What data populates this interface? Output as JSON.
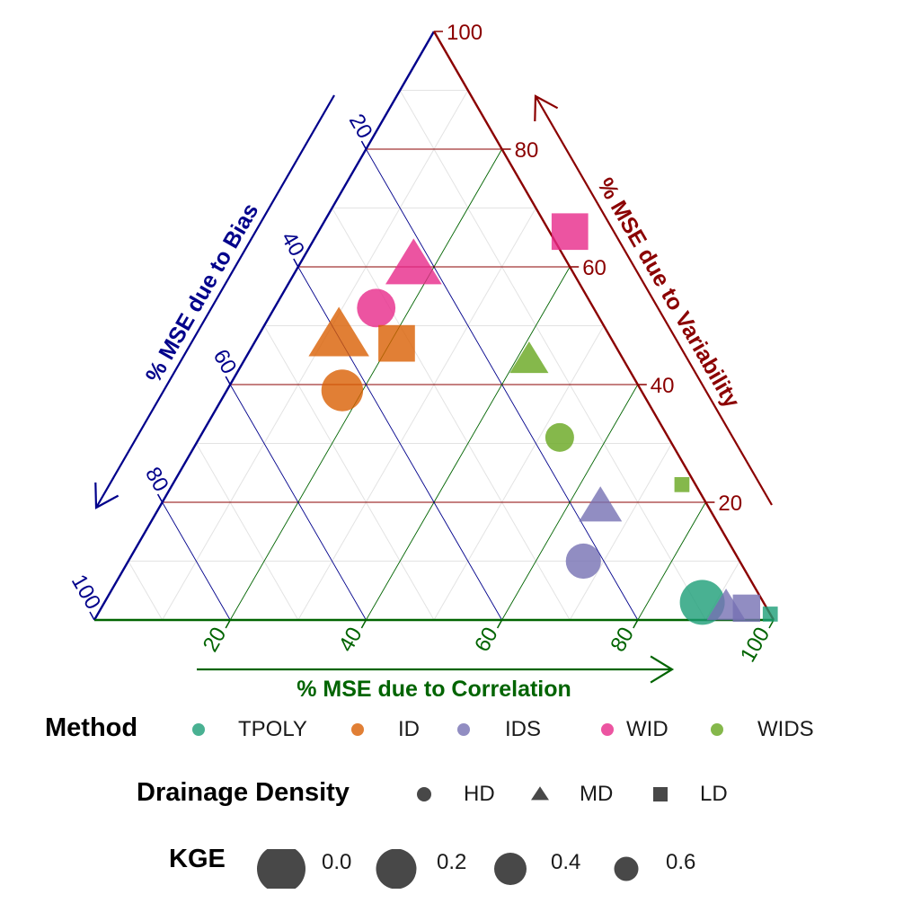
{
  "chart_data": {
    "type": "ternary-scatter",
    "axes": {
      "bias": {
        "label": "% MSE due to Bias",
        "color": "#00008B",
        "ticks": [
          "20",
          "40",
          "60",
          "80",
          "100"
        ]
      },
      "variability": {
        "label": "% MSE due to Variability",
        "color": "#8B0000",
        "ticks": [
          "20",
          "40",
          "60",
          "80",
          "100"
        ]
      },
      "correlation": {
        "label": "% MSE due to Correlation",
        "color": "#006400",
        "ticks": [
          "20",
          "40",
          "60",
          "80",
          "100"
        ]
      }
    },
    "grid": true,
    "methods": [
      {
        "name": "TPOLY",
        "color": "#1B9E77"
      },
      {
        "name": "ID",
        "color": "#D95F02"
      },
      {
        "name": "IDS",
        "color": "#7570B3"
      },
      {
        "name": "WID",
        "color": "#E7298A"
      },
      {
        "name": "WIDS",
        "color": "#66A61E"
      }
    ],
    "drainage_density": [
      {
        "name": "HD",
        "shape": "circle"
      },
      {
        "name": "MD",
        "shape": "triangle"
      },
      {
        "name": "LD",
        "shape": "square"
      }
    ],
    "kge_legend": [
      "0.0",
      "0.2",
      "0.4",
      "0.6"
    ],
    "points": [
      {
        "method": "WID",
        "density": "LD",
        "correlation": 37,
        "variability": 66,
        "bias": -3,
        "kge": 0.2
      },
      {
        "method": "WID",
        "density": "MD",
        "correlation": 17,
        "variability": 60,
        "bias": 23,
        "kge": 0.1
      },
      {
        "method": "WID",
        "density": "HD",
        "correlation": 15,
        "variability": 53,
        "bias": 32,
        "kge": 0.2
      },
      {
        "method": "ID",
        "density": "MD",
        "correlation": 12,
        "variability": 48,
        "bias": 40,
        "kge": 0.0
      },
      {
        "method": "ID",
        "density": "LD",
        "correlation": 21,
        "variability": 47,
        "bias": 32,
        "kge": 0.2
      },
      {
        "method": "ID",
        "density": "HD",
        "correlation": 17,
        "variability": 39,
        "bias": 44,
        "kge": 0.1
      },
      {
        "method": "WIDS",
        "density": "MD",
        "correlation": 42,
        "variability": 44,
        "bias": 14,
        "kge": 0.5
      },
      {
        "method": "WIDS",
        "density": "HD",
        "correlation": 53,
        "variability": 31,
        "bias": 16,
        "kge": 0.5
      },
      {
        "method": "WIDS",
        "density": "LD",
        "correlation": 75,
        "variability": 23,
        "bias": 2,
        "kge": 0.9
      },
      {
        "method": "IDS",
        "density": "MD",
        "correlation": 65,
        "variability": 19,
        "bias": 16,
        "kge": 0.4
      },
      {
        "method": "IDS",
        "density": "HD",
        "correlation": 67,
        "variability": 10,
        "bias": 23,
        "kge": 0.3
      },
      {
        "method": "TPOLY",
        "density": "HD",
        "correlation": 88,
        "variability": 3,
        "bias": 9,
        "kge": 0.0
      },
      {
        "method": "IDS",
        "density": "MD",
        "correlation": 92,
        "variability": 2,
        "bias": 6,
        "kge": 0.5
      },
      {
        "method": "IDS",
        "density": "LD",
        "correlation": 95,
        "variability": 2,
        "bias": 3,
        "kge": 0.5
      },
      {
        "method": "TPOLY",
        "density": "LD",
        "correlation": 99,
        "variability": 1,
        "bias": 0,
        "kge": 0.9
      }
    ]
  },
  "legend": {
    "method_title": "Method",
    "density_title": "Drainage Density",
    "kge_title": "KGE"
  }
}
